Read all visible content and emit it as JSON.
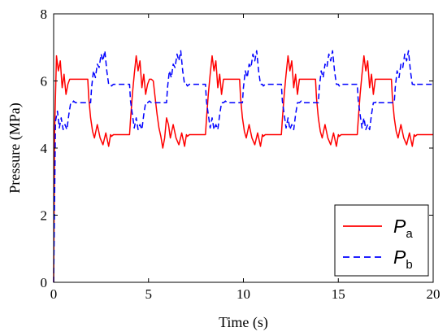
{
  "chart_data": {
    "type": "line",
    "xlabel": "Time (s)",
    "ylabel": "Pressure (MPa)",
    "xlim": [
      0,
      20
    ],
    "ylim": [
      0,
      8
    ],
    "xticks": [
      0,
      5,
      10,
      15,
      20
    ],
    "yticks": [
      0,
      2,
      4,
      6,
      8
    ],
    "grid": false,
    "legend_position": "bottom-right",
    "series": [
      {
        "name": "P",
        "subscript": "a",
        "color": "#ff0000",
        "dash": "solid",
        "x": [
          0,
          0.05,
          0.15,
          0.25,
          0.35,
          0.45,
          0.55,
          0.65,
          0.75,
          0.85,
          0.95,
          1.8,
          1.85,
          1.95,
          2.05,
          2.15,
          2.3,
          2.45,
          2.6,
          2.75,
          2.9,
          3.0,
          3.05,
          3.15,
          4.0,
          4.05,
          4.15,
          4.25,
          4.35,
          4.45,
          4.55,
          4.65,
          4.75,
          4.85,
          4.95,
          5.05,
          5.15,
          5.25,
          5.35,
          5.45,
          5.55,
          5.65,
          5.75,
          5.85,
          5.95,
          6.05,
          6.15,
          6.3,
          6.45,
          6.6,
          6.75,
          6.9,
          7.0,
          7.05,
          7.15,
          8.0,
          8.05,
          8.15,
          8.25,
          8.35,
          8.45,
          8.55,
          8.65,
          8.75,
          8.85,
          8.95,
          9.8,
          9.85,
          9.95,
          10.05,
          10.15,
          10.3,
          10.45,
          10.6,
          10.75,
          10.9,
          11.0,
          11.05,
          11.15,
          12.0,
          12.05,
          12.15,
          12.25,
          12.35,
          12.45,
          12.55,
          12.65,
          12.75,
          12.85,
          12.95,
          13.8,
          13.85,
          13.95,
          14.05,
          14.15,
          14.3,
          14.45,
          14.6,
          14.75,
          14.9,
          15.0,
          15.05,
          15.15,
          16.0,
          16.05,
          16.15,
          16.25,
          16.35,
          16.45,
          16.55,
          16.65,
          16.75,
          16.85,
          16.95,
          17.8,
          17.85,
          17.95,
          18.05,
          18.15,
          18.3,
          18.45,
          18.6,
          18.75,
          18.9,
          19.0,
          19.05,
          19.15,
          20.0
        ],
        "y": [
          0,
          4.5,
          6.75,
          6.3,
          6.6,
          5.8,
          6.2,
          5.6,
          5.9,
          6.05,
          6.05,
          6.05,
          5.5,
          4.9,
          4.5,
          4.3,
          4.7,
          4.3,
          4.1,
          4.45,
          4.05,
          4.4,
          4.35,
          4.4,
          4.4,
          4.85,
          5.6,
          6.2,
          6.75,
          6.3,
          6.6,
          5.8,
          6.2,
          5.6,
          5.9,
          6.05,
          6.05,
          6.0,
          5.5,
          5.0,
          4.6,
          4.35,
          4.0,
          4.3,
          4.9,
          4.7,
          4.3,
          4.7,
          4.3,
          4.1,
          4.45,
          4.05,
          4.4,
          4.35,
          4.4,
          4.4,
          4.85,
          5.6,
          6.2,
          6.75,
          6.3,
          6.6,
          5.8,
          6.2,
          5.6,
          6.05,
          6.05,
          5.5,
          4.9,
          4.5,
          4.3,
          4.7,
          4.3,
          4.1,
          4.45,
          4.05,
          4.4,
          4.35,
          4.4,
          4.4,
          4.85,
          5.6,
          6.2,
          6.75,
          6.3,
          6.6,
          5.8,
          6.2,
          5.6,
          6.05,
          6.05,
          5.5,
          4.9,
          4.5,
          4.3,
          4.7,
          4.3,
          4.1,
          4.45,
          4.05,
          4.4,
          4.35,
          4.4,
          4.4,
          4.85,
          5.6,
          6.2,
          6.75,
          6.3,
          6.6,
          5.8,
          6.2,
          5.6,
          6.05,
          6.05,
          5.5,
          4.9,
          4.5,
          4.3,
          4.7,
          4.3,
          4.1,
          4.45,
          4.05,
          4.4,
          4.35,
          4.4,
          4.4
        ]
      },
      {
        "name": "P",
        "subscript": "b",
        "color": "#0000ff",
        "dash": "dashed",
        "x": [
          0,
          0.1,
          0.2,
          0.3,
          0.4,
          0.5,
          0.6,
          0.7,
          0.8,
          0.9,
          1.0,
          1.05,
          1.15,
          1.95,
          2.0,
          2.1,
          2.2,
          2.3,
          2.4,
          2.5,
          2.6,
          2.7,
          2.8,
          2.9,
          3.0,
          3.05,
          3.15,
          4.0,
          4.05,
          4.15,
          4.25,
          4.35,
          4.45,
          4.55,
          4.65,
          4.75,
          4.85,
          4.95,
          5.05,
          5.15,
          5.95,
          6.0,
          6.1,
          6.2,
          6.3,
          6.4,
          6.5,
          6.6,
          6.7,
          6.8,
          6.9,
          7.0,
          7.05,
          7.15,
          8.0,
          8.05,
          8.15,
          8.25,
          8.35,
          8.45,
          8.55,
          8.65,
          8.75,
          8.85,
          8.95,
          9.05,
          9.15,
          9.95,
          10.0,
          10.1,
          10.2,
          10.3,
          10.4,
          10.5,
          10.6,
          10.7,
          10.8,
          10.9,
          11.0,
          11.05,
          11.15,
          12.0,
          12.05,
          12.15,
          12.25,
          12.35,
          12.45,
          12.55,
          12.65,
          12.75,
          12.85,
          12.95,
          13.05,
          13.15,
          13.95,
          14.0,
          14.1,
          14.2,
          14.3,
          14.4,
          14.5,
          14.6,
          14.7,
          14.8,
          14.9,
          15.0,
          15.05,
          15.15,
          16.0,
          16.05,
          16.15,
          16.25,
          16.35,
          16.45,
          16.55,
          16.65,
          16.75,
          16.85,
          16.95,
          17.05,
          17.15,
          17.95,
          18.0,
          18.1,
          18.2,
          18.3,
          18.4,
          18.5,
          18.6,
          18.7,
          18.8,
          18.9,
          19.0,
          19.05,
          19.15,
          20.0
        ],
        "y": [
          0,
          4.8,
          5.1,
          4.6,
          4.9,
          4.55,
          4.7,
          4.55,
          5.0,
          5.35,
          5.35,
          5.4,
          5.35,
          5.35,
          5.8,
          6.3,
          6.1,
          6.5,
          6.4,
          6.8,
          6.6,
          6.9,
          6.3,
          5.9,
          5.9,
          5.85,
          5.9,
          5.9,
          5.4,
          5.0,
          4.6,
          4.9,
          4.55,
          4.7,
          4.55,
          5.0,
          5.35,
          5.35,
          5.4,
          5.35,
          5.35,
          5.8,
          6.3,
          6.1,
          6.5,
          6.4,
          6.8,
          6.6,
          6.9,
          6.3,
          5.9,
          5.9,
          5.85,
          5.9,
          5.9,
          5.4,
          5.0,
          4.6,
          4.9,
          4.55,
          4.7,
          4.55,
          5.0,
          5.35,
          5.35,
          5.4,
          5.35,
          5.35,
          5.8,
          6.3,
          6.1,
          6.5,
          6.4,
          6.8,
          6.6,
          6.9,
          6.3,
          5.9,
          5.9,
          5.85,
          5.9,
          5.9,
          5.4,
          5.0,
          4.6,
          4.9,
          4.55,
          4.7,
          4.55,
          5.0,
          5.35,
          5.35,
          5.4,
          5.35,
          5.35,
          5.8,
          6.3,
          6.1,
          6.5,
          6.4,
          6.8,
          6.6,
          6.9,
          6.3,
          5.9,
          5.9,
          5.85,
          5.9,
          5.9,
          5.4,
          5.0,
          4.6,
          4.9,
          4.55,
          4.7,
          4.55,
          5.0,
          5.35,
          5.35,
          5.4,
          5.35,
          5.35,
          5.8,
          6.3,
          6.1,
          6.5,
          6.4,
          6.8,
          6.6,
          6.9,
          6.3,
          5.9,
          5.9,
          5.85,
          5.9,
          5.9
        ]
      }
    ]
  }
}
